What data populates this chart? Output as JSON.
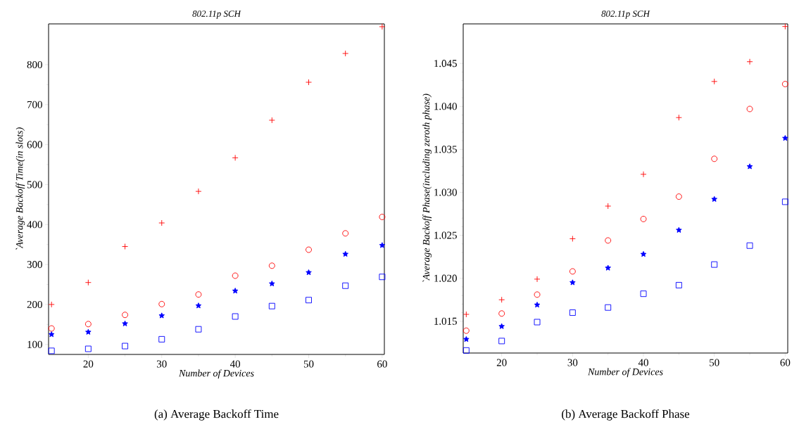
{
  "chart_data": [
    {
      "type": "scatter",
      "title": "802.11p SCH",
      "xlabel": "Number of Devices",
      "ylabel": "`Average Backoff Time(in slots)",
      "annotations": [
        "(a)  Average Backoff Time"
      ],
      "x": [
        15,
        20,
        25,
        30,
        35,
        40,
        45,
        50,
        55,
        60
      ],
      "xlim": [
        14.6,
        60.3
      ],
      "xticks": [
        20,
        30,
        40,
        50,
        60
      ],
      "ylim": [
        75,
        902
      ],
      "yticks": [
        100,
        200,
        300,
        400,
        500,
        600,
        700,
        800
      ],
      "series": [
        {
          "color": "#ff0000",
          "marker": "cross",
          "values": [
            200,
            255,
            345,
            404,
            483,
            567,
            661,
            756,
            828,
            895
          ]
        },
        {
          "color": "#ff0000",
          "marker": "circle",
          "values": [
            140,
            151,
            174,
            201,
            225,
            272,
            297,
            337,
            378,
            419
          ]
        },
        {
          "color": "#0000ff",
          "marker": "star",
          "values": [
            125,
            131,
            152,
            172,
            197,
            234,
            252,
            280,
            326,
            348
          ]
        },
        {
          "color": "#0000ff",
          "marker": "square",
          "values": [
            84,
            89,
            96,
            113,
            138,
            170,
            196,
            211,
            247,
            269
          ]
        }
      ]
    },
    {
      "type": "scatter",
      "title": "802.11p SCH",
      "xlabel": "Number of Devices",
      "ylabel": "`Average Backoff Phase(including zeroth phase)",
      "annotations": [
        "(b)  Average Backoff Phase"
      ],
      "x": [
        15,
        20,
        25,
        30,
        35,
        40,
        45,
        50,
        55,
        60
      ],
      "xlim": [
        14.57,
        60.36
      ],
      "xticks": [
        20,
        30,
        40,
        50,
        60
      ],
      "ylim": [
        1.0113,
        1.0496
      ],
      "yticks": [
        1.015,
        {
          "value": 1.02,
          "label": "1.020"
        },
        1.025,
        {
          "value": 1.03,
          "label": "1.030"
        },
        1.035,
        {
          "value": 1.04,
          "label": "1.040"
        },
        1.045
      ],
      "series": [
        {
          "color": "#ff0000",
          "marker": "cross",
          "values": [
            1.0158,
            1.0175,
            1.0199,
            1.0246,
            1.0284,
            1.0321,
            1.0387,
            1.0429,
            1.0452,
            1.0493
          ]
        },
        {
          "color": "#ff0000",
          "marker": "circle",
          "values": [
            1.0139,
            1.0159,
            1.0181,
            1.0208,
            1.0244,
            1.0269,
            1.0295,
            1.0339,
            1.0397,
            1.0426
          ]
        },
        {
          "color": "#0000ff",
          "marker": "star",
          "values": [
            1.0129,
            1.0144,
            1.0169,
            1.0195,
            1.0212,
            1.0228,
            1.0256,
            1.0292,
            1.033,
            1.0363
          ]
        },
        {
          "color": "#0000ff",
          "marker": "square",
          "values": [
            1.0116,
            1.0127,
            1.0149,
            1.016,
            1.0166,
            1.0182,
            1.0192,
            1.0216,
            1.0238,
            1.0289
          ]
        }
      ]
    }
  ]
}
